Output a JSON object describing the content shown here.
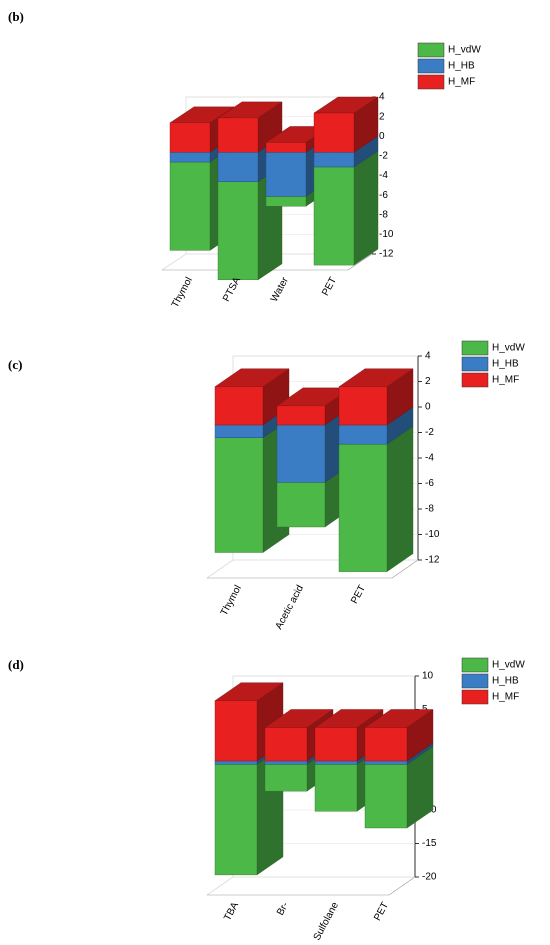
{
  "chart_data": [
    {
      "type": "bar3d",
      "label": "(b)",
      "categories": [
        "Thymol",
        "PTSA",
        "Water",
        "PET"
      ],
      "series": [
        {
          "name": "H_vdW",
          "color": "#4cb848",
          "values": [
            -9,
            -10,
            -1,
            -10
          ]
        },
        {
          "name": "H_HB",
          "color": "#3a7dc4",
          "values": [
            -1,
            -3,
            -4.5,
            -1.5
          ]
        },
        {
          "name": "H_MF",
          "color": "#e82020",
          "values": [
            3,
            3.5,
            1,
            4
          ]
        }
      ],
      "ylim": [
        -12,
        4
      ],
      "yticks": [
        -12,
        -10,
        -8,
        -6,
        -4,
        -2,
        0,
        2,
        4
      ],
      "grid": true,
      "legend": "upper right"
    },
    {
      "type": "bar3d",
      "label": "(c)",
      "categories": [
        "Thymol",
        "Acetic acid",
        "PET"
      ],
      "series": [
        {
          "name": "H_vdW",
          "color": "#4cb848",
          "values": [
            -9,
            -3.5,
            -10
          ]
        },
        {
          "name": "H_HB",
          "color": "#3a7dc4",
          "values": [
            -1,
            -4.5,
            -1.5
          ]
        },
        {
          "name": "H_MF",
          "color": "#e82020",
          "values": [
            3,
            1.5,
            3
          ]
        }
      ],
      "ylim": [
        -12,
        4
      ],
      "yticks": [
        -12,
        -10,
        -8,
        -6,
        -4,
        -2,
        0,
        2,
        4
      ],
      "grid": true,
      "legend": "upper right"
    },
    {
      "type": "bar3d",
      "label": "(d)",
      "categories": [
        "TBA",
        "Br-",
        "Sulfolane",
        "PET"
      ],
      "series": [
        {
          "name": "H_vdW",
          "color": "#4cb848",
          "values": [
            -16.5,
            -4,
            -7,
            -9.5
          ]
        },
        {
          "name": "H_HB",
          "color": "#3a7dc4",
          "values": [
            -0.5,
            -0.5,
            -0.5,
            -0.5
          ]
        },
        {
          "name": "H_MF",
          "color": "#e82020",
          "values": [
            9,
            5,
            5,
            5
          ]
        }
      ],
      "ylim": [
        -20,
        10
      ],
      "yticks": [
        -20,
        -15,
        -10,
        -5,
        0,
        5,
        10
      ],
      "grid": true,
      "legend": "upper right"
    }
  ]
}
